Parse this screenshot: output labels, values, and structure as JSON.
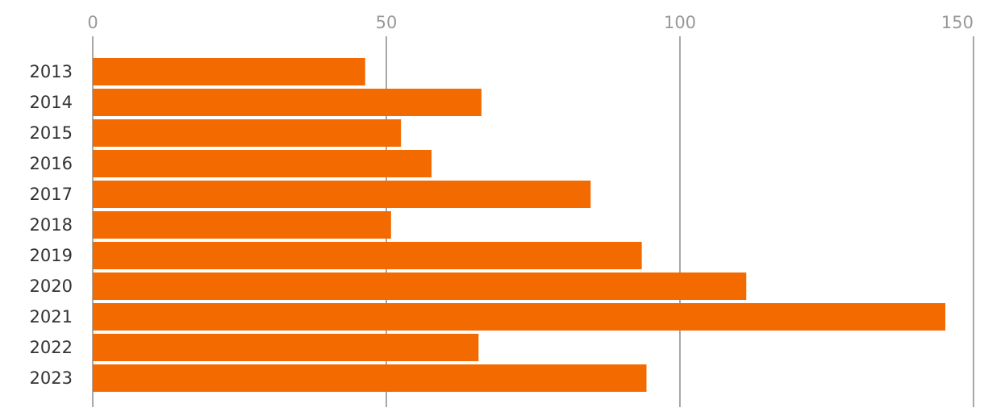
{
  "chart_data": {
    "type": "bar",
    "orientation": "horizontal",
    "categories": [
      "2013",
      "2014",
      "2015",
      "2016",
      "2017",
      "2018",
      "2019",
      "2020",
      "2021",
      "2022",
      "2023"
    ],
    "values": [
      46.4,
      66.2,
      52.5,
      57.7,
      84.8,
      50.8,
      93.5,
      111.3,
      145.2,
      65.7,
      94.3
    ],
    "xlim": [
      0,
      150
    ],
    "x_ticks": [
      "0",
      "50",
      "100",
      "150"
    ],
    "x_axis_position": "top",
    "grid": true,
    "title": "",
    "xlabel": "",
    "ylabel": "",
    "bar_color": "#f36b00",
    "grid_color": "#8c8c8c"
  }
}
